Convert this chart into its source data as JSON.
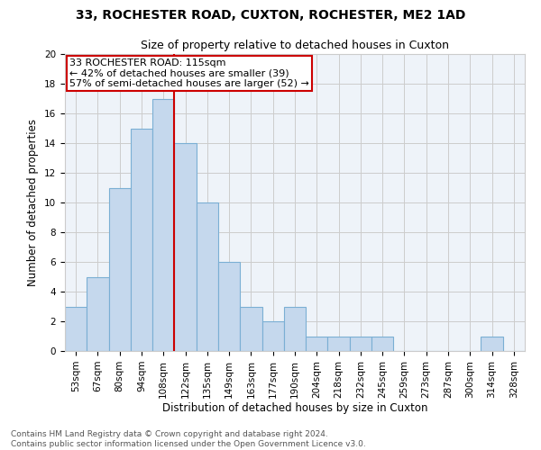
{
  "title": "33, ROCHESTER ROAD, CUXTON, ROCHESTER, ME2 1AD",
  "subtitle": "Size of property relative to detached houses in Cuxton",
  "xlabel": "Distribution of detached houses by size in Cuxton",
  "ylabel": "Number of detached properties",
  "bar_labels": [
    "53sqm",
    "67sqm",
    "80sqm",
    "94sqm",
    "108sqm",
    "122sqm",
    "135sqm",
    "149sqm",
    "163sqm",
    "177sqm",
    "190sqm",
    "204sqm",
    "218sqm",
    "232sqm",
    "245sqm",
    "259sqm",
    "273sqm",
    "287sqm",
    "300sqm",
    "314sqm",
    "328sqm"
  ],
  "bar_values": [
    3,
    5,
    11,
    15,
    17,
    14,
    10,
    6,
    3,
    2,
    3,
    1,
    1,
    1,
    1,
    0,
    0,
    0,
    0,
    1,
    0
  ],
  "bar_color": "#c5d8ed",
  "bar_edgecolor": "#7bafd4",
  "property_label": "33 ROCHESTER ROAD: 115sqm",
  "annotation_line1": "← 42% of detached houses are smaller (39)",
  "annotation_line2": "57% of semi-detached houses are larger (52) →",
  "red_line_bin": 4.5,
  "annotation_box_color": "#ffffff",
  "annotation_box_edgecolor": "#cc0000",
  "ylim": [
    0,
    20
  ],
  "yticks": [
    0,
    2,
    4,
    6,
    8,
    10,
    12,
    14,
    16,
    18,
    20
  ],
  "grid_color": "#cccccc",
  "bg_color": "#eef3f9",
  "footer_line1": "Contains HM Land Registry data © Crown copyright and database right 2024.",
  "footer_line2": "Contains public sector information licensed under the Open Government Licence v3.0.",
  "title_fontsize": 10,
  "subtitle_fontsize": 9,
  "xlabel_fontsize": 8.5,
  "ylabel_fontsize": 8.5,
  "tick_fontsize": 7.5,
  "annotation_fontsize": 8,
  "footer_fontsize": 6.5
}
